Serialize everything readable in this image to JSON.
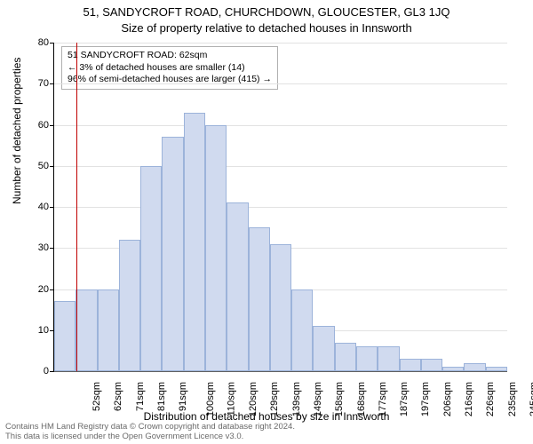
{
  "title_line1": "51, SANDYCROFT ROAD, CHURCHDOWN, GLOUCESTER, GL3 1JQ",
  "title_line2": "Size of property relative to detached houses in Innsworth",
  "ylabel": "Number of detached properties",
  "xlabel": "Distribution of detached houses by size in Innsworth",
  "chart": {
    "type": "histogram",
    "ylim": [
      0,
      80
    ],
    "ytick_step": 10,
    "yticks": [
      0,
      10,
      20,
      30,
      40,
      50,
      60,
      70,
      80
    ],
    "background_color": "#ffffff",
    "grid_color": "#e2e2e2",
    "axis_color": "#000000",
    "bar_fill": "#d0daef",
    "bar_border": "#9cb3da",
    "ref_line_color": "#c00000",
    "ref_line_x": 62,
    "x_tick_labels": [
      "52sqm",
      "62sqm",
      "71sqm",
      "81sqm",
      "91sqm",
      "100sqm",
      "110sqm",
      "120sqm",
      "129sqm",
      "139sqm",
      "149sqm",
      "158sqm",
      "168sqm",
      "177sqm",
      "187sqm",
      "197sqm",
      "206sqm",
      "216sqm",
      "226sqm",
      "235sqm",
      "245sqm"
    ],
    "values": [
      17,
      20,
      20,
      32,
      50,
      57,
      63,
      60,
      41,
      35,
      31,
      20,
      11,
      7,
      6,
      6,
      3,
      3,
      1,
      2,
      1
    ],
    "bar_width_rel": 1.0,
    "title_fontsize": 13,
    "label_fontsize": 12,
    "tick_fontsize": 11
  },
  "annotation": {
    "line1": "51 SANDYCROFT ROAD: 62sqm",
    "line2": "← 3% of detached houses are smaller (14)",
    "line3": "96% of semi-detached houses are larger (415) →",
    "box_border": "#b0b0b0",
    "box_bg": "#ffffff"
  },
  "footer": {
    "line1": "Contains HM Land Registry data © Crown copyright and database right 2024.",
    "line2": "This data is licensed under the Open Government Licence v3.0.",
    "color": "#6a6a6a"
  }
}
